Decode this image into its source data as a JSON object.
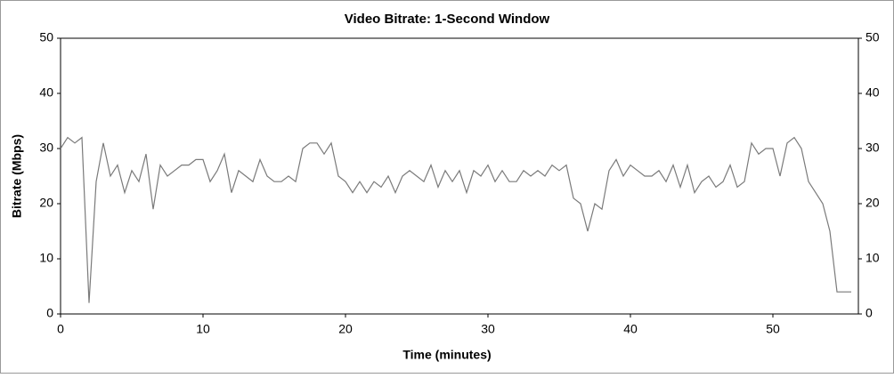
{
  "chart_data": {
    "type": "line",
    "title": "Video Bitrate: 1-Second Window",
    "x_label": "Time (minutes)",
    "y_label": "Bitrate (Mbps)",
    "xlim": [
      0,
      56
    ],
    "xticks": [
      0,
      10,
      20,
      30,
      40,
      50
    ],
    "ylim": [
      0,
      50
    ],
    "yticks": [
      0,
      10,
      20,
      30,
      40,
      50
    ],
    "y2lim": [
      0,
      50
    ],
    "y2ticks": [
      0,
      10,
      20,
      30,
      40,
      50
    ],
    "grid": false,
    "x": [
      0,
      0.5,
      1,
      1.5,
      2,
      2.5,
      3,
      3.5,
      4,
      4.5,
      5,
      5.5,
      6,
      6.5,
      7,
      7.5,
      8,
      8.5,
      9,
      9.5,
      10,
      10.5,
      11,
      11.5,
      12,
      12.5,
      13,
      13.5,
      14,
      14.5,
      15,
      15.5,
      16,
      16.5,
      17,
      17.5,
      18,
      18.5,
      19,
      19.5,
      20,
      20.5,
      21,
      21.5,
      22,
      22.5,
      23,
      23.5,
      24,
      24.5,
      25,
      25.5,
      26,
      26.5,
      27,
      27.5,
      28,
      28.5,
      29,
      29.5,
      30,
      30.5,
      31,
      31.5,
      32,
      32.5,
      33,
      33.5,
      34,
      34.5,
      35,
      35.5,
      36,
      36.5,
      37,
      37.5,
      38,
      38.5,
      39,
      39.5,
      40,
      40.5,
      41,
      41.5,
      42,
      42.5,
      43,
      43.5,
      44,
      44.5,
      45,
      45.5,
      46,
      46.5,
      47,
      47.5,
      48,
      48.5,
      49,
      49.5,
      50,
      50.5,
      51,
      51.5,
      52,
      52.5,
      53,
      53.5,
      54,
      54.5,
      55,
      55.5
    ],
    "series": [
      {
        "name": "Video Bitrate",
        "color": "#7a7a7a",
        "values": [
          30,
          32,
          31,
          32,
          2,
          24,
          31,
          25,
          27,
          22,
          26,
          24,
          29,
          19,
          27,
          25,
          26,
          27,
          27,
          28,
          28,
          24,
          26,
          29,
          22,
          26,
          25,
          24,
          28,
          25,
          24,
          24,
          25,
          24,
          30,
          31,
          31,
          29,
          31,
          25,
          24,
          22,
          24,
          22,
          24,
          23,
          25,
          22,
          25,
          26,
          25,
          24,
          27,
          23,
          26,
          24,
          26,
          22,
          26,
          25,
          27,
          24,
          26,
          24,
          24,
          26,
          25,
          26,
          25,
          27,
          26,
          27,
          21,
          20,
          15,
          20,
          19,
          26,
          28,
          25,
          27,
          26,
          25,
          25,
          26,
          24,
          27,
          23,
          27,
          22,
          24,
          25,
          23,
          24,
          27,
          23,
          24,
          31,
          29,
          30,
          30,
          25,
          31,
          32,
          30,
          24,
          22,
          20,
          15,
          4,
          4,
          4
        ]
      }
    ]
  }
}
